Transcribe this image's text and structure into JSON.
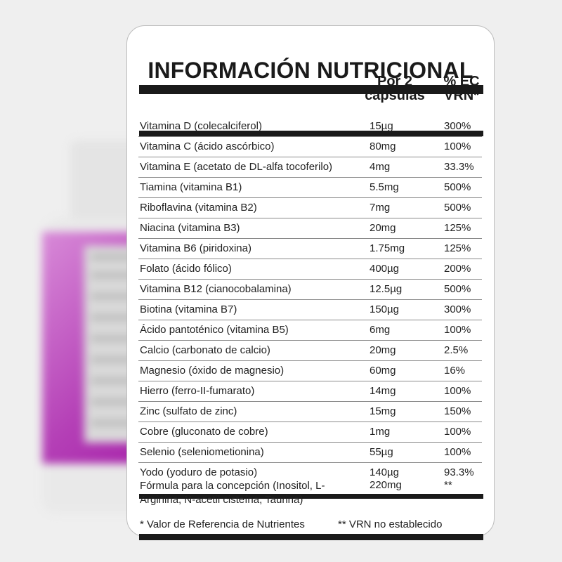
{
  "title": "INFORMACIÓN NUTRICIONAL",
  "header": {
    "amount_line1": "Por 2",
    "amount_line2": "cápsulas",
    "vrn_line1": "% EC",
    "vrn_line2": "VRN*"
  },
  "rows": [
    {
      "name": "Vitamina D (colecalciferol)",
      "amount": "15µg",
      "vrn": "300%"
    },
    {
      "name": "Vitamina C (ácido ascórbico)",
      "amount": "80mg",
      "vrn": "100%"
    },
    {
      "name": "Vitamina E (acetato de DL-alfa tocoferilo)",
      "amount": "4mg",
      "vrn": "33.3%"
    },
    {
      "name": "Tiamina (vitamina B1)",
      "amount": "5.5mg",
      "vrn": "500%"
    },
    {
      "name": "Riboflavina (vitamina B2)",
      "amount": "7mg",
      "vrn": "500%"
    },
    {
      "name": "Niacina (vitamina B3)",
      "amount": "20mg",
      "vrn": "125%"
    },
    {
      "name": "Vitamina B6 (piridoxina)",
      "amount": "1.75mg",
      "vrn": "125%"
    },
    {
      "name": "Folato (ácido fólico)",
      "amount": "400µg",
      "vrn": "200%"
    },
    {
      "name": "Vitamina B12 (cianocobalamina)",
      "amount": "12.5µg",
      "vrn": "500%"
    },
    {
      "name": "Biotina (vitamina B7)",
      "amount": "150µg",
      "vrn": "300%"
    },
    {
      "name": "Ácido pantoténico (vitamina B5)",
      "amount": "6mg",
      "vrn": "100%"
    },
    {
      "name": "Calcio (carbonato de calcio)",
      "amount": "20mg",
      "vrn": "2.5%"
    },
    {
      "name": "Magnesio (óxido de magnesio)",
      "amount": "60mg",
      "vrn": "16%"
    },
    {
      "name": "Hierro (ferro-II-fumarato)",
      "amount": "14mg",
      "vrn": "100%"
    },
    {
      "name": "Zinc (sulfato de zinc)",
      "amount": "15mg",
      "vrn": "150%"
    },
    {
      "name": "Cobre (gluconato de cobre)",
      "amount": "1mg",
      "vrn": "100%"
    },
    {
      "name": "Selenio (seleniometionina)",
      "amount": "55µg",
      "vrn": "100%"
    },
    {
      "name": "Yodo (yoduro de potasio)",
      "amount": "140µg",
      "vrn": "93.3%"
    }
  ],
  "formula": {
    "name": "Fórmula para la concepción (Inositol, L-Arginina, N-acetil cisteína, Taurina)",
    "amount": "220mg",
    "vrn": "**"
  },
  "footnotes": {
    "note1": "* Valor de Referencia de Nutrientes",
    "note2": "** VRN no establecido"
  },
  "colors": {
    "ink": "#1a1a1a",
    "background": "#efefef",
    "bottle_label": "#b43fb6"
  }
}
